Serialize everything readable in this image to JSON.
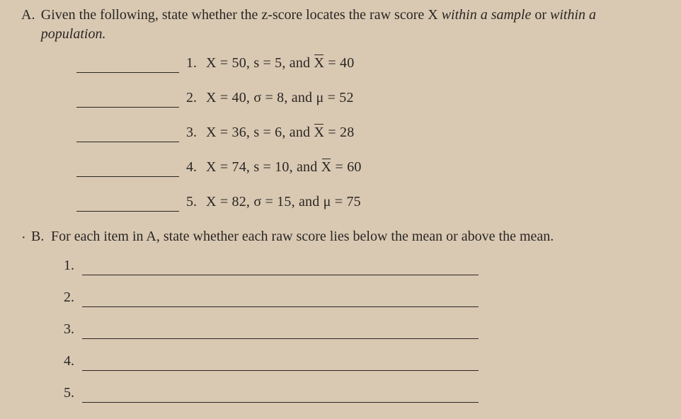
{
  "sectionA": {
    "label": "A.",
    "prompt_pre": "Given the following, state whether the z-score locates the raw score X ",
    "prompt_it1": "within a sample",
    "prompt_mid": " or ",
    "prompt_it2": "within a population.",
    "items": [
      {
        "num": "1.",
        "pre": "X = 50, s = 5, and ",
        "xbar": "X",
        "post": " = 40"
      },
      {
        "num": "2.",
        "pre": "X = 40, σ = 8, and μ = 52",
        "xbar": "",
        "post": ""
      },
      {
        "num": "3.",
        "pre": "X = 36, s = 6, and ",
        "xbar": "X",
        "post": " = 28"
      },
      {
        "num": "4.",
        "pre": "X = 74, s = 10, and ",
        "xbar": "X",
        "post": " = 60"
      },
      {
        "num": "5.",
        "pre": "X = 82, σ = 15, and μ = 75",
        "xbar": "",
        "post": ""
      }
    ]
  },
  "sectionB": {
    "dot": "·",
    "label": "B.",
    "prompt": "For each item in A, state whether each raw score lies below the mean or above the mean.",
    "items": [
      {
        "num": "1."
      },
      {
        "num": "2."
      },
      {
        "num": "3."
      },
      {
        "num": "4."
      },
      {
        "num": "5."
      }
    ]
  }
}
